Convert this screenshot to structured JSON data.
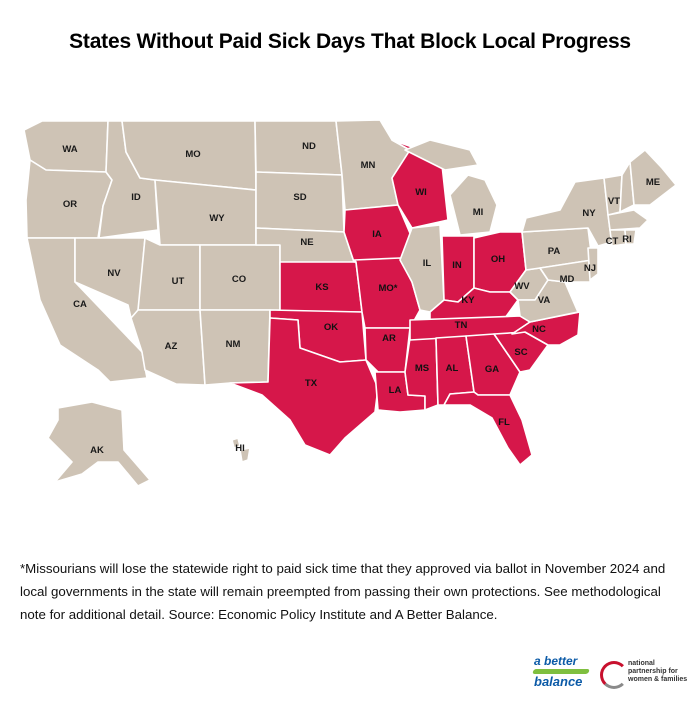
{
  "title": "States Without Paid Sick Days That Block Local Progress",
  "colors": {
    "blocking": "#d6174a",
    "other": "#cec3b5"
  },
  "states": {
    "WA": "WA",
    "OR": "OR",
    "CA": "CA",
    "ID": "ID",
    "NV": "NV",
    "MO_MT": "MO",
    "WY": "WY",
    "UT": "UT",
    "AZ": "AZ",
    "CO": "CO",
    "NM": "NM",
    "ND": "ND",
    "SD": "SD",
    "NE": "NE",
    "KS": "KS",
    "OK": "OK",
    "TX": "TX",
    "MN": "MN",
    "IA": "IA",
    "MO": "MO*",
    "AR": "AR",
    "LA": "LA",
    "WI": "WI",
    "IL": "IL",
    "MS": "MS",
    "MI": "MI",
    "IN": "IN",
    "KY": "KY",
    "TN": "TN",
    "AL": "AL",
    "OH": "OH",
    "GA": "GA",
    "FL": "FL",
    "SC": "SC",
    "NC": "NC",
    "WV": "WV",
    "VA": "VA",
    "PA": "PA",
    "NY": "NY",
    "VT": "VT",
    "ME": "ME",
    "CT": "CT",
    "RI": "RI",
    "NJ": "NJ",
    "MD": "MD",
    "AK": "AK",
    "HI": "HI"
  },
  "blocking_states": [
    "KS",
    "OK",
    "TX",
    "IA",
    "MO",
    "AR",
    "LA",
    "WI",
    "MS",
    "IN",
    "KY",
    "TN",
    "AL",
    "OH",
    "GA",
    "FL",
    "SC",
    "NC"
  ],
  "note": "*Missourians will lose the statewide right to paid sick time that they approved via ballot in November 2024 and local governments in the state will remain preempted from passing their own protections. See methodological note for additional detail. Source: Economic Policy Institute and A Better Balance.",
  "logos": {
    "abb_line1": "a better",
    "abb_line2": "balance",
    "npwf": "national partnership for women & families"
  }
}
